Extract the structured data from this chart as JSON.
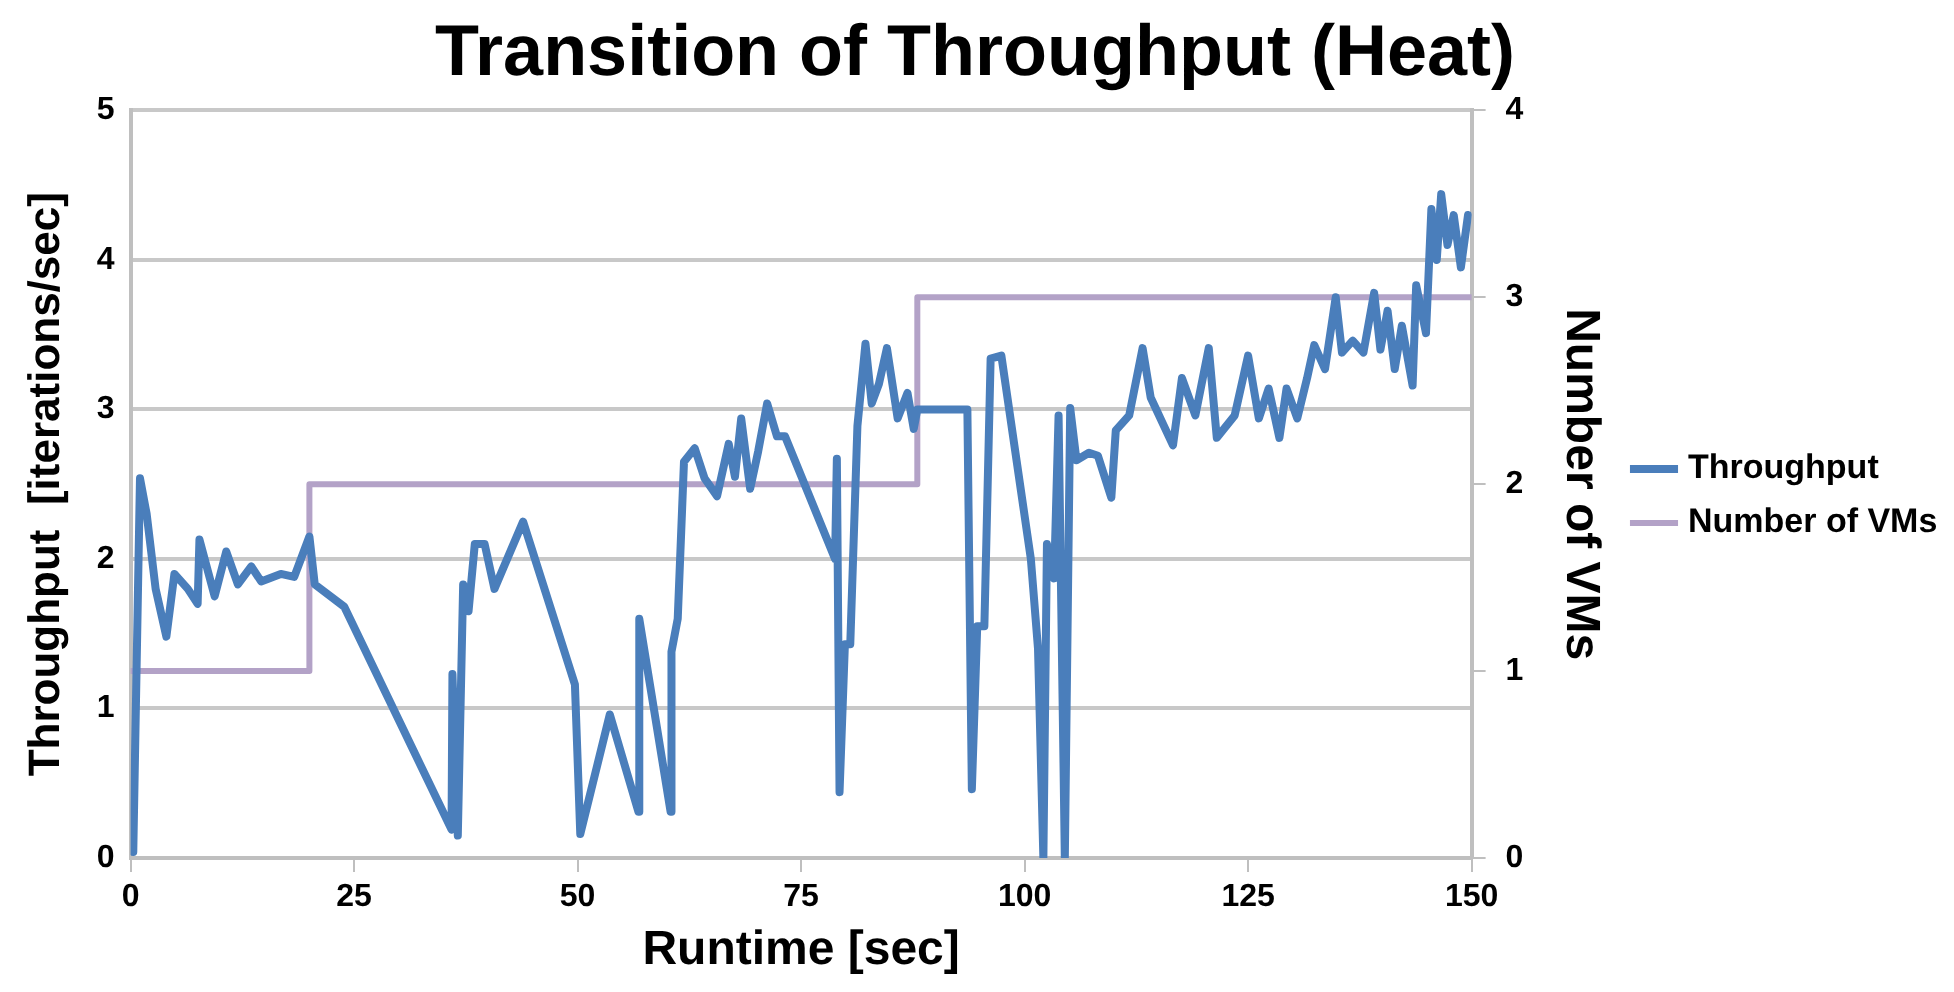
{
  "chart_data": {
    "type": "line",
    "title": "Transition of Throughput (Heat)",
    "xlabel": "Runtime [sec]",
    "ylabel": "Throughput  [iterations/sec]",
    "y2label": "Number of VMs",
    "xlim": [
      0,
      150
    ],
    "xticks": [
      0,
      25,
      50,
      75,
      100,
      125,
      150
    ],
    "ylim": [
      0,
      5
    ],
    "yticks": [
      0,
      1,
      2,
      3,
      4,
      5
    ],
    "y2lim": [
      0,
      4
    ],
    "y2ticks": [
      0,
      1,
      2,
      3,
      4
    ],
    "grid": "y",
    "legend": "right",
    "marker": "none",
    "series": [
      {
        "name": "Throughput",
        "color": "#4a7ebb",
        "x": [
          0.3,
          1.05,
          1.8,
          2.8,
          4.0,
          4.9,
          6.4,
          7.5,
          7.7,
          9.4,
          10.7,
          12.0,
          13.5,
          14.6,
          16.8,
          18.3,
          20.0,
          20.6,
          23.9,
          35.9,
          36.0,
          36.6,
          37.2,
          37.8,
          38.5,
          39.6,
          40.7,
          43.9,
          49.7,
          50.3,
          53.6,
          56.8,
          56.9,
          60.4,
          60.5,
          61.2,
          61.9,
          63.1,
          64.2,
          65.6,
          66.9,
          67.6,
          68.3,
          69.3,
          70.2,
          71.2,
          72.3,
          73.2,
          78.8,
          79.0,
          79.3,
          79.9,
          80.5,
          81.3,
          82.2,
          82.9,
          83.7,
          84.6,
          85.8,
          86.9,
          87.6,
          88.0,
          93.6,
          94.1,
          94.7,
          95.5,
          96.2,
          97.4,
          100.7,
          101.5,
          102.1,
          102.5,
          103.3,
          103.8,
          104.5,
          105.1,
          105.8,
          107.2,
          108.2,
          109.7,
          110.2,
          111.7,
          113.2,
          114.1,
          116.6,
          117.6,
          119.1,
          120.6,
          121.5,
          123.5,
          125,
          126.2,
          127.3,
          128.5,
          129.3,
          130.5,
          131.6,
          132.4,
          133.6,
          134.8,
          135.5,
          136.7,
          137.9,
          139.1,
          139.8,
          140.6,
          141.4,
          142.2,
          143.4,
          143.8,
          144.9,
          145.5,
          146.1,
          146.6,
          147.3,
          148.0,
          148.8,
          149.6
        ],
        "values": [
          0.04,
          2.54,
          2.3,
          1.8,
          1.48,
          1.9,
          1.8,
          1.7,
          2.13,
          1.75,
          2.05,
          1.83,
          1.95,
          1.85,
          1.9,
          1.88,
          2.15,
          1.83,
          1.68,
          0.19,
          1.23,
          0.15,
          1.83,
          1.65,
          2.1,
          2.1,
          1.8,
          2.25,
          1.16,
          0.16,
          0.96,
          0.31,
          1.6,
          0.31,
          1.38,
          1.6,
          2.65,
          2.74,
          2.54,
          2.42,
          2.77,
          2.55,
          2.94,
          2.47,
          2.72,
          3.04,
          2.82,
          2.82,
          2.0,
          2.67,
          0.44,
          1.43,
          1.43,
          2.89,
          3.44,
          3.04,
          3.17,
          3.41,
          2.94,
          3.11,
          2.87,
          3.0,
          3.0,
          0.46,
          1.55,
          1.55,
          3.34,
          3.36,
          2.0,
          1.4,
          0,
          2.1,
          1.87,
          2.96,
          0,
          3.01,
          2.66,
          2.71,
          2.69,
          2.41,
          2.86,
          2.96,
          3.41,
          3.08,
          2.76,
          3.21,
          2.96,
          3.41,
          2.81,
          2.96,
          3.36,
          2.94,
          3.14,
          2.81,
          3.14,
          2.94,
          3.21,
          3.43,
          3.27,
          3.75,
          3.38,
          3.46,
          3.38,
          3.78,
          3.4,
          3.66,
          3.27,
          3.56,
          3.16,
          3.83,
          3.51,
          4.34,
          4.0,
          4.44,
          4.1,
          4.3,
          3.95,
          4.3
        ]
      },
      {
        "name": "Number of VMs",
        "type": "step",
        "axis": "y2",
        "color": "#b3a2c7",
        "x": [
          0,
          20,
          88,
          150
        ],
        "values": [
          1,
          2,
          3,
          3
        ]
      }
    ]
  }
}
